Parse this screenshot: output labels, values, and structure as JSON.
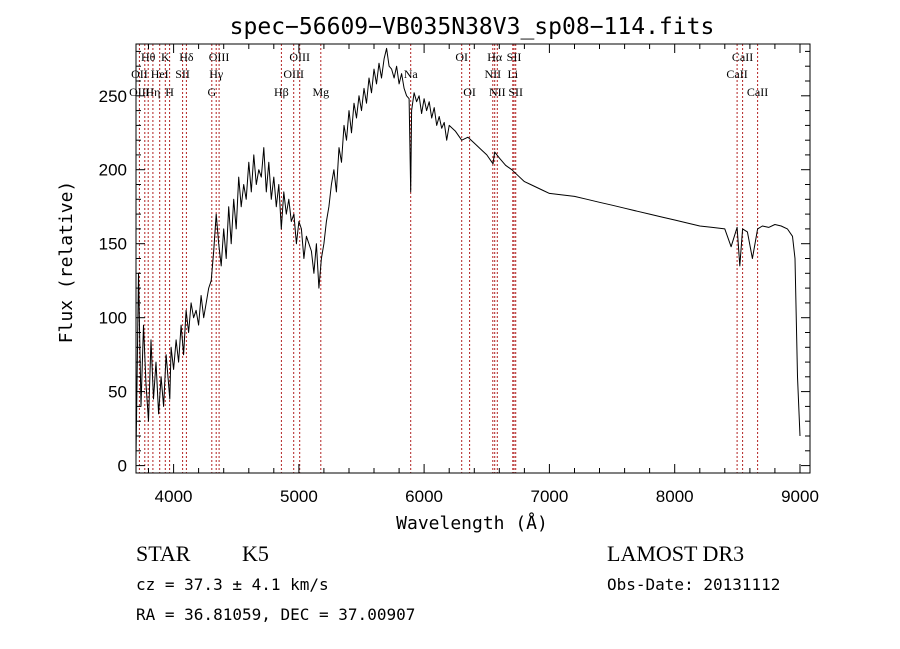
{
  "chart_data": {
    "type": "line",
    "title": "spec−56609−VB035N38V3_sp08−114.fits",
    "xlabel": "Wavelength (Å)",
    "ylabel": "Flux (relative)",
    "xlim": [
      3700,
      9080
    ],
    "ylim": [
      -5,
      285
    ],
    "xticks": [
      4000,
      5000,
      6000,
      7000,
      8000,
      9000
    ],
    "yticks": [
      0,
      50,
      100,
      150,
      200,
      250
    ],
    "grid": false,
    "series": [
      {
        "x": [
          3700,
          3720,
          3740,
          3760,
          3780,
          3800,
          3820,
          3840,
          3860,
          3880,
          3900,
          3920,
          3940,
          3960,
          3970,
          3980,
          4000,
          4020,
          4040,
          4060,
          4080,
          4100,
          4120,
          4140,
          4160,
          4180,
          4200,
          4220,
          4240,
          4260,
          4280,
          4300,
          4320,
          4340,
          4360,
          4380,
          4400,
          4420,
          4440,
          4460,
          4480,
          4500,
          4520,
          4540,
          4560,
          4580,
          4600,
          4620,
          4640,
          4660,
          4680,
          4700,
          4720,
          4740,
          4760,
          4780,
          4800,
          4820,
          4840,
          4860,
          4880,
          4900,
          4920,
          4940,
          4960,
          4980,
          5000,
          5020,
          5040,
          5060,
          5080,
          5100,
          5120,
          5140,
          5160,
          5180,
          5200,
          5220,
          5240,
          5260,
          5280,
          5300,
          5320,
          5340,
          5360,
          5380,
          5400,
          5420,
          5440,
          5460,
          5480,
          5500,
          5520,
          5540,
          5560,
          5580,
          5600,
          5620,
          5640,
          5660,
          5680,
          5700,
          5720,
          5740,
          5760,
          5780,
          5800,
          5820,
          5840,
          5860,
          5880,
          5893,
          5900,
          5920,
          5940,
          5960,
          5980,
          6000,
          6020,
          6040,
          6060,
          6080,
          6100,
          6120,
          6140,
          6160,
          6180,
          6200,
          6250,
          6300,
          6350,
          6400,
          6450,
          6500,
          6550,
          6563,
          6600,
          6650,
          6700,
          6750,
          6800,
          6850,
          6900,
          6950,
          7000,
          7100,
          7200,
          7300,
          7400,
          7500,
          7600,
          7700,
          7800,
          7900,
          8000,
          8100,
          8200,
          8300,
          8400,
          8450,
          8498,
          8520,
          8542,
          8580,
          8620,
          8662,
          8700,
          8750,
          8800,
          8850,
          8900,
          8940,
          8960,
          8980,
          9000
        ],
        "y": [
          5,
          130,
          40,
          95,
          55,
          30,
          85,
          45,
          70,
          35,
          60,
          40,
          75,
          55,
          45,
          80,
          65,
          85,
          70,
          95,
          75,
          105,
          90,
          110,
          100,
          105,
          95,
          115,
          100,
          110,
          120,
          125,
          145,
          170,
          150,
          135,
          160,
          140,
          175,
          150,
          180,
          160,
          195,
          175,
          190,
          180,
          205,
          185,
          210,
          190,
          200,
          195,
          215,
          185,
          205,
          180,
          195,
          175,
          190,
          160,
          185,
          170,
          180,
          165,
          170,
          150,
          165,
          160,
          140,
          155,
          150,
          145,
          130,
          150,
          120,
          140,
          150,
          165,
          175,
          190,
          200,
          185,
          215,
          205,
          230,
          220,
          240,
          225,
          245,
          235,
          250,
          240,
          255,
          245,
          262,
          252,
          268,
          258,
          272,
          262,
          275,
          282,
          270,
          268,
          262,
          270,
          258,
          265,
          255,
          250,
          248,
          185,
          240,
          252,
          246,
          250,
          238,
          248,
          240,
          246,
          235,
          242,
          230,
          236,
          228,
          232,
          220,
          230,
          226,
          220,
          222,
          218,
          214,
          210,
          204,
          212,
          208,
          203,
          200,
          196,
          192,
          190,
          188,
          186,
          184,
          183,
          182,
          180,
          178,
          176,
          174,
          172,
          170,
          168,
          166,
          164,
          162,
          161,
          160,
          148,
          161,
          135,
          160,
          158,
          140,
          160,
          162,
          161,
          163,
          162,
          160,
          155,
          140,
          60,
          20
        ]
      }
    ],
    "annotations": [
      {
        "label": "Hθ",
        "x": 3797,
        "row": 1
      },
      {
        "label": "K",
        "x": 3934,
        "row": 1
      },
      {
        "label": "Hδ",
        "x": 4102,
        "row": 1
      },
      {
        "label": "OIII",
        "x": 4363,
        "row": 1
      },
      {
        "label": "OIII",
        "x": 5007,
        "row": 1
      },
      {
        "label": "OI",
        "x": 6300,
        "row": 1
      },
      {
        "label": "Hα",
        "x": 6563,
        "row": 1
      },
      {
        "label": "SII",
        "x": 6717,
        "row": 1
      },
      {
        "label": "CaII",
        "x": 8542,
        "row": 1
      },
      {
        "label": "OII",
        "x": 3727,
        "row": 2
      },
      {
        "label": "HeI",
        "x": 3889,
        "row": 2
      },
      {
        "label": "SII",
        "x": 4072,
        "row": 2
      },
      {
        "label": "Hγ",
        "x": 4340,
        "row": 2
      },
      {
        "label": "OIII",
        "x": 4959,
        "row": 2
      },
      {
        "label": "Na",
        "x": 5893,
        "row": 2
      },
      {
        "label": "NII",
        "x": 6548,
        "row": 2
      },
      {
        "label": "Li",
        "x": 6708,
        "row": 2
      },
      {
        "label": "CaII",
        "x": 8498,
        "row": 2
      },
      {
        "label": "OIII",
        "x": 3727,
        "row": 3
      },
      {
        "label": "Hη",
        "x": 3835,
        "row": 3
      },
      {
        "label": "H",
        "x": 3968,
        "row": 3
      },
      {
        "label": "G",
        "x": 4305,
        "row": 3
      },
      {
        "label": "Hβ",
        "x": 4861,
        "row": 3
      },
      {
        "label": "Mg",
        "x": 5175,
        "row": 3
      },
      {
        "label": "OI",
        "x": 6363,
        "row": 3
      },
      {
        "label": "NII",
        "x": 6584,
        "row": 3
      },
      {
        "label": "SII",
        "x": 6731,
        "row": 3
      },
      {
        "label": "CaII",
        "x": 8662,
        "row": 3
      }
    ],
    "marker_lines_x": [
      3727,
      3770,
      3797,
      3835,
      3889,
      3934,
      3968,
      4072,
      4102,
      4305,
      4340,
      4363,
      4861,
      4959,
      5007,
      5175,
      5893,
      6300,
      6363,
      6548,
      6563,
      6584,
      6708,
      6717,
      6731,
      8498,
      8542,
      8662
    ]
  },
  "info": {
    "object_class": "STAR",
    "subclass": "K5",
    "survey": "LAMOST DR3",
    "redshift": "cz = 37.3 ± 4.1 km/s",
    "obs_date": "Obs-Date: 20131112",
    "coords": "RA =  36.81059, DEC =  37.00907"
  }
}
